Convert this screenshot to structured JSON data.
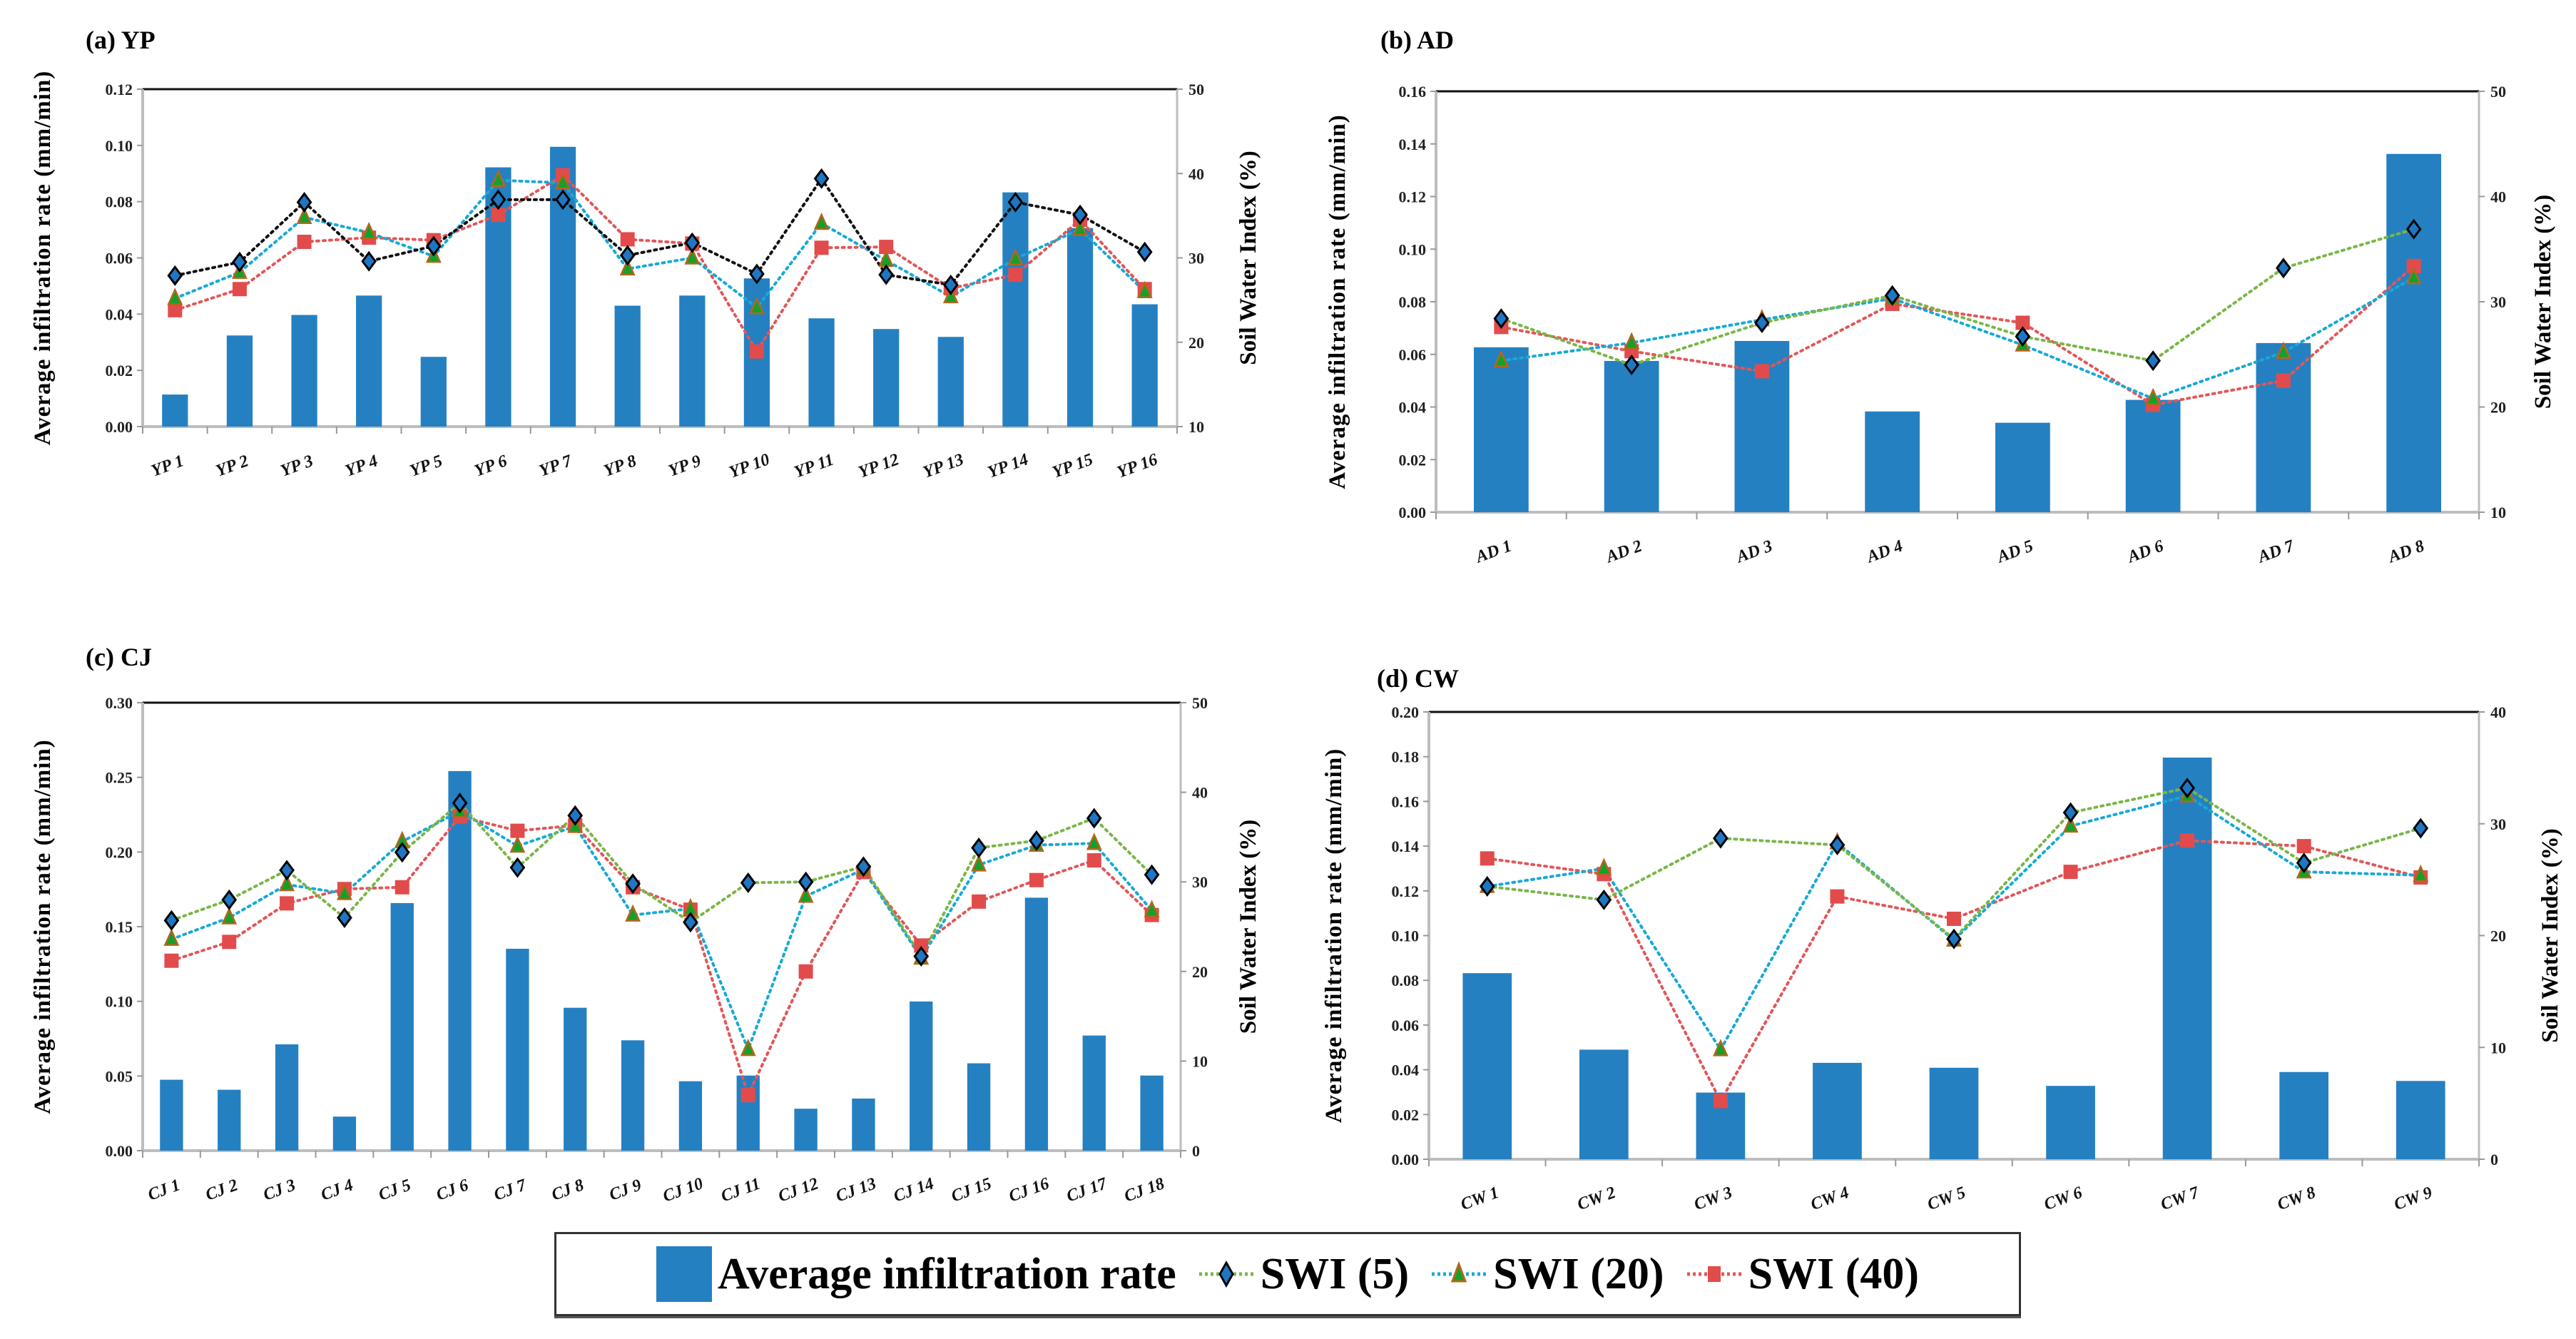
{
  "chart_data": [
    {
      "id": "YP",
      "type": "bar",
      "title": "(a) YP",
      "categories": [
        "YP 1",
        "YP 2",
        "YP 3",
        "YP 4",
        "YP 5",
        "YP 6",
        "YP 7",
        "YP 8",
        "YP 9",
        "YP 10",
        "YP 11",
        "YP 12",
        "YP 13",
        "YP 14",
        "YP 15",
        "YP 16"
      ],
      "ylabel": "Average infiltration rate (mm/min)",
      "y2label": "Soil Water Index (%)",
      "ylim": [
        0,
        0.12
      ],
      "yticks": [
        "0.00",
        "0.02",
        "0.04",
        "0.06",
        "0.08",
        "0.10",
        "0.12"
      ],
      "y2lim": [
        10,
        50
      ],
      "y2ticks": [
        "10",
        "20",
        "30",
        "40",
        "50"
      ],
      "swi5_line_color": "#111111",
      "bars": {
        "name": "Average infiltration rate",
        "values": [
          0.0114,
          0.0324,
          0.0397,
          0.0466,
          0.0248,
          0.0922,
          0.0995,
          0.043,
          0.0466,
          0.0527,
          0.0385,
          0.0347,
          0.0319,
          0.0833,
          0.0706,
          0.0435
        ]
      },
      "series": [
        {
          "name": "SWI (5)",
          "axis": "right",
          "values": [
            27.9,
            29.5,
            36.6,
            29.6,
            31.4,
            36.9,
            36.9,
            30.3,
            31.8,
            28.1,
            39.4,
            28.0,
            26.8,
            36.6,
            35.1,
            30.7
          ]
        },
        {
          "name": "SWI (20)",
          "axis": "right",
          "values": [
            25.2,
            28.3,
            34.8,
            33.0,
            30.2,
            39.2,
            38.9,
            28.7,
            30.0,
            24.1,
            34.1,
            29.7,
            25.4,
            29.9,
            33.4,
            26.0
          ]
        },
        {
          "name": "SWI (40)",
          "axis": "right",
          "values": [
            23.8,
            26.3,
            31.9,
            32.4,
            32.1,
            35.1,
            39.8,
            32.2,
            31.7,
            18.9,
            31.2,
            31.3,
            26.4,
            28.0,
            34.5,
            26.3
          ]
        }
      ]
    },
    {
      "id": "AD",
      "type": "bar",
      "title": "(b) AD",
      "categories": [
        "AD 1",
        "AD 2",
        "AD 3",
        "AD 4",
        "AD 5",
        "AD 6",
        "AD 7",
        "AD 8"
      ],
      "ylabel": "Average infiltration rate (mm/min)",
      "y2label": "Soil Water Index (%)",
      "ylim": [
        0,
        0.16
      ],
      "yticks": [
        "0.00",
        "0.02",
        "0.04",
        "0.06",
        "0.08",
        "0.10",
        "0.12",
        "0.14",
        "0.16"
      ],
      "y2lim": [
        10,
        50
      ],
      "y2ticks": [
        "10",
        "20",
        "30",
        "40",
        "50"
      ],
      "swi5_line_color": "#7ab648",
      "bars": {
        "name": "Average infiltration rate",
        "values": [
          0.0627,
          0.0575,
          0.0651,
          0.0383,
          0.034,
          0.0427,
          0.0643,
          0.1362
        ]
      },
      "series": [
        {
          "name": "SWI (5)",
          "axis": "right",
          "values": [
            28.4,
            24.0,
            28.0,
            30.6,
            26.7,
            24.4,
            33.2,
            36.9
          ]
        },
        {
          "name": "SWI (20)",
          "axis": "right",
          "values": [
            24.4,
            26.1,
            28.3,
            30.3,
            25.9,
            20.8,
            25.2,
            32.3
          ]
        },
        {
          "name": "SWI (40)",
          "axis": "right",
          "values": [
            27.6,
            25.3,
            23.4,
            29.8,
            28.0,
            20.2,
            22.5,
            33.4
          ]
        }
      ]
    },
    {
      "id": "CJ",
      "type": "bar",
      "title": "(c) CJ",
      "categories": [
        "CJ 1",
        "CJ 2",
        "CJ 3",
        "CJ 4",
        "CJ 5",
        "CJ 6",
        "CJ 7",
        "CJ 8",
        "CJ 9",
        "CJ 10",
        "CJ 11",
        "CJ 12",
        "CJ 13",
        "CJ 14",
        "CJ 15",
        "CJ 16",
        "CJ 17",
        "CJ 18"
      ],
      "ylabel": "Average infiltration rate (mm/min)",
      "y2label": "Soil Water Index (%)",
      "ylim": [
        0,
        0.3
      ],
      "yticks": [
        "0.00",
        "0.05",
        "0.10",
        "0.15",
        "0.20",
        "0.25",
        "0.30"
      ],
      "y2lim": [
        0,
        50
      ],
      "y2ticks": [
        "0",
        "10",
        "20",
        "30",
        "40",
        "50"
      ],
      "swi5_line_color": "#7ab648",
      "bars": {
        "name": "Average infiltration rate",
        "values": [
          0.0475,
          0.0408,
          0.0712,
          0.0228,
          0.1658,
          0.2542,
          0.1352,
          0.0957,
          0.0739,
          0.0465,
          0.0503,
          0.0281,
          0.0349,
          0.0999,
          0.0585,
          0.1694,
          0.0771,
          0.0503
        ]
      },
      "series": [
        {
          "name": "SWI (5)",
          "axis": "right",
          "values": [
            25.7,
            28.0,
            31.3,
            26.0,
            33.3,
            38.8,
            31.6,
            37.4,
            29.8,
            25.5,
            29.9,
            30.0,
            31.7,
            21.7,
            33.8,
            34.6,
            37.1,
            30.8
          ]
        },
        {
          "name": "SWI (20)",
          "axis": "right",
          "values": [
            23.6,
            26.0,
            29.7,
            28.7,
            34.5,
            37.9,
            34.0,
            36.2,
            26.3,
            27.0,
            11.3,
            28.4,
            31.4,
            21.5,
            31.9,
            34.1,
            34.3,
            26.8
          ]
        },
        {
          "name": "SWI (40)",
          "axis": "right",
          "values": [
            21.2,
            23.3,
            27.6,
            29.2,
            29.4,
            37.3,
            35.7,
            36.3,
            29.4,
            26.9,
            6.2,
            20.0,
            31.1,
            22.9,
            27.8,
            30.2,
            32.4,
            26.3
          ]
        }
      ]
    },
    {
      "id": "CW",
      "type": "bar",
      "title": "(d) CW",
      "categories": [
        "CW 1",
        "CW 2",
        "CW 3",
        "CW 4",
        "CW 5",
        "CW 6",
        "CW 7",
        "CW 8",
        "CW 9"
      ],
      "ylabel": "Average infiltration rate (mm/min)",
      "y2label": "Soil Water Index (%)",
      "ylim": [
        0,
        0.2
      ],
      "yticks": [
        "0.00",
        "0.02",
        "0.04",
        "0.06",
        "0.08",
        "0.10",
        "0.12",
        "0.14",
        "0.16",
        "0.18",
        "0.20"
      ],
      "y2lim": [
        0,
        40
      ],
      "y2ticks": [
        "0",
        "10",
        "20",
        "30",
        "40"
      ],
      "swi5_line_color": "#7ab648",
      "bars": {
        "name": "Average infiltration rate",
        "values": [
          0.0832,
          0.049,
          0.0298,
          0.0431,
          0.0409,
          0.0328,
          0.1796,
          0.039,
          0.035
        ]
      },
      "series": [
        {
          "name": "SWI (5)",
          "axis": "right",
          "values": [
            24.4,
            23.2,
            28.7,
            28.1,
            19.7,
            31.0,
            33.2,
            26.5,
            29.6
          ]
        },
        {
          "name": "SWI (20)",
          "axis": "right",
          "values": [
            24.4,
            26.0,
            9.8,
            28.3,
            19.6,
            29.8,
            32.5,
            25.7,
            25.4
          ]
        },
        {
          "name": "SWI (40)",
          "axis": "right",
          "values": [
            26.9,
            25.5,
            5.2,
            23.5,
            21.5,
            25.7,
            28.5,
            28.0,
            25.2
          ]
        }
      ]
    }
  ],
  "legend": {
    "items": [
      "Average infiltration rate",
      "SWI (5)",
      "SWI (20)",
      "SWI (40)"
    ]
  },
  "colors": {
    "bar": "#2580c2",
    "swi5_marker": "#1f77c4",
    "swi20_line": "#17a9d6",
    "swi20_marker": "#12a12a",
    "swi40_line": "#e15759",
    "swi40_marker": "#e24b4b",
    "swi5_legend_line": "#7ab648"
  }
}
